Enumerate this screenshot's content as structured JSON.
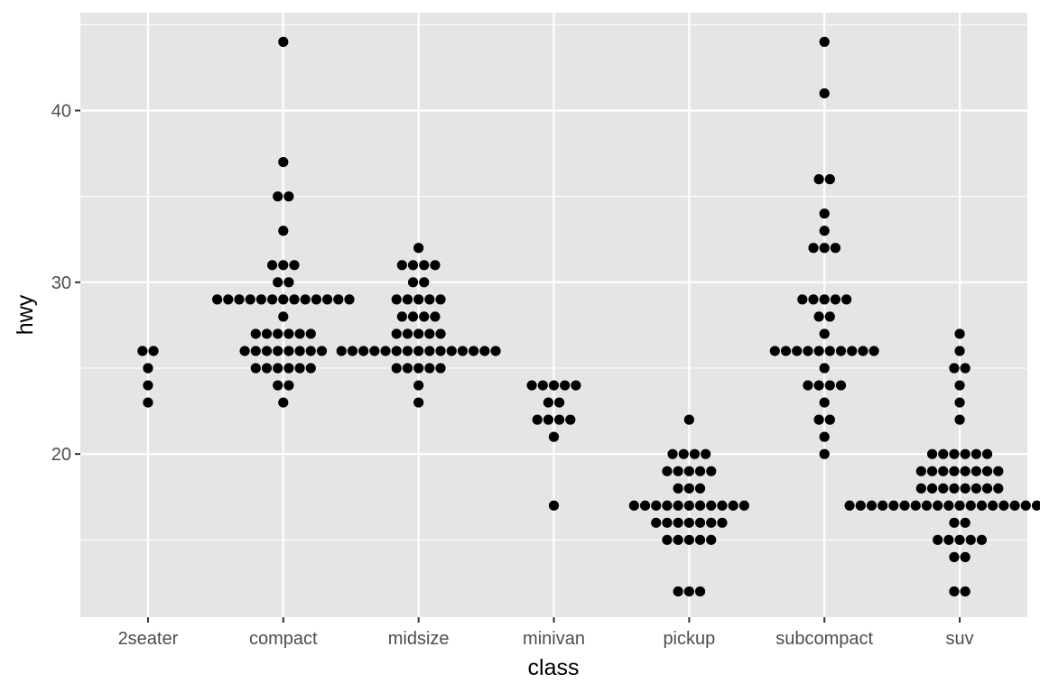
{
  "chart_data": {
    "type": "scatter",
    "style": "beeswarm",
    "xlabel": "class",
    "ylabel": "hwy",
    "categories": [
      "2seater",
      "compact",
      "midsize",
      "minivan",
      "pickup",
      "subcompact",
      "suv"
    ],
    "y_ticks": [
      20,
      30,
      40
    ],
    "ylim": [
      10.5,
      45.7
    ],
    "grid": true,
    "colors": {
      "panel": "#e5e5e5",
      "grid": "#ffffff",
      "point": "#000000",
      "tick_text": "#4d4d4d"
    },
    "points": {
      "2seater": [
        26,
        26,
        25,
        24,
        23
      ],
      "compact": [
        44,
        37,
        35,
        35,
        33,
        31,
        31,
        31,
        30,
        30,
        29,
        29,
        29,
        29,
        29,
        29,
        29,
        29,
        29,
        29,
        29,
        29,
        29,
        28,
        27,
        27,
        27,
        27,
        27,
        27,
        26,
        26,
        26,
        26,
        26,
        26,
        26,
        26,
        25,
        25,
        25,
        25,
        25,
        25,
        24,
        24,
        23
      ],
      "midsize": [
        32,
        31,
        31,
        31,
        31,
        30,
        30,
        29,
        29,
        29,
        29,
        29,
        28,
        28,
        28,
        28,
        27,
        27,
        27,
        27,
        27,
        26,
        26,
        26,
        26,
        26,
        26,
        26,
        26,
        26,
        26,
        26,
        26,
        26,
        26,
        26,
        25,
        25,
        25,
        25,
        25,
        24,
        23
      ],
      "minivan": [
        24,
        24,
        24,
        24,
        24,
        23,
        23,
        22,
        22,
        22,
        22,
        21,
        17
      ],
      "pickup": [
        22,
        20,
        20,
        20,
        20,
        19,
        19,
        19,
        19,
        19,
        18,
        18,
        18,
        17,
        17,
        17,
        17,
        17,
        17,
        17,
        17,
        17,
        17,
        17,
        16,
        16,
        16,
        16,
        16,
        16,
        16,
        15,
        15,
        15,
        15,
        15,
        12,
        12,
        12
      ],
      "subcompact": [
        44,
        41,
        36,
        36,
        34,
        33,
        32,
        32,
        32,
        29,
        29,
        29,
        29,
        29,
        28,
        28,
        27,
        26,
        26,
        26,
        26,
        26,
        26,
        26,
        26,
        26,
        26,
        25,
        24,
        24,
        24,
        24,
        23,
        22,
        22,
        21,
        20
      ],
      "suv": [
        27,
        26,
        25,
        25,
        24,
        23,
        22,
        20,
        20,
        20,
        20,
        20,
        20,
        19,
        19,
        19,
        19,
        19,
        19,
        19,
        19,
        18,
        18,
        18,
        18,
        18,
        18,
        18,
        18,
        17,
        17,
        17,
        17,
        17,
        17,
        17,
        17,
        17,
        17,
        17,
        17,
        17,
        17,
        17,
        17,
        17,
        17,
        17,
        17,
        17,
        16,
        16,
        15,
        15,
        15,
        15,
        15,
        14,
        14,
        12,
        12
      ]
    }
  }
}
